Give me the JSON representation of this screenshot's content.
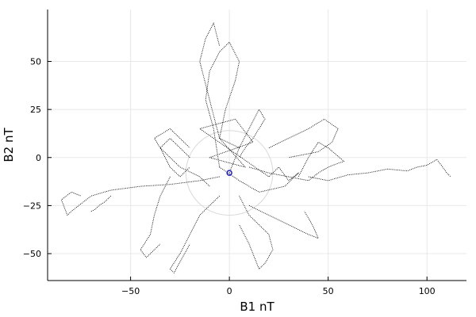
{
  "chart_data": {
    "type": "line",
    "xlabel": "B1 nT",
    "ylabel": "B2 nT",
    "xlim": [
      -92,
      120
    ],
    "ylim": [
      -64,
      77
    ],
    "xticks": [
      -50,
      0,
      50,
      100
    ],
    "yticks": [
      -50,
      -25,
      0,
      25,
      50
    ],
    "xtick_labels": [
      "−50",
      "0",
      "50",
      "100"
    ],
    "ytick_labels": [
      "−50",
      "−25",
      "0",
      "25",
      "50"
    ],
    "grid": true,
    "legend": "none",
    "colors": {
      "trace": "#000000",
      "marker": "#1f1fbf",
      "circle": "#d8d8d8",
      "grid": "#e8e8e8"
    },
    "circle": {
      "center": [
        0,
        -8
      ],
      "radius": 22
    },
    "marker": {
      "x": 0,
      "y": -8
    },
    "series": [
      {
        "x": [
          0,
          5,
          -5,
          8,
          -10,
          12,
          3,
          -15,
          20,
          25,
          30,
          35,
          28,
          15,
          5,
          -5
        ],
        "y": [
          -8,
          5,
          10,
          -5,
          0,
          8,
          20,
          15,
          -10,
          -5,
          -12,
          -8,
          -15,
          -18,
          -12,
          -5
        ]
      },
      {
        "x": [
          -5,
          -8,
          -12,
          -10,
          -5,
          0,
          5,
          3,
          -2,
          -5
        ],
        "y": [
          -5,
          15,
          30,
          45,
          55,
          60,
          50,
          40,
          25,
          10
        ]
      },
      {
        "x": [
          -5,
          -10,
          -15,
          -12,
          -8,
          -5
        ],
        "y": [
          10,
          30,
          50,
          62,
          70,
          58
        ]
      },
      {
        "x": [
          10,
          20,
          30,
          40,
          45,
          50,
          55,
          58,
          50,
          45,
          40,
          35
        ],
        "y": [
          -5,
          -8,
          -10,
          -12,
          -8,
          -5,
          -3,
          -2,
          5,
          8,
          0,
          -10
        ]
      },
      {
        "x": [
          40,
          50,
          60,
          70,
          80,
          90,
          95,
          100,
          105,
          108,
          110,
          112
        ],
        "y": [
          -10,
          -12,
          -9,
          -8,
          -6,
          -7,
          -5,
          -4,
          -1,
          -5,
          -8,
          -10
        ]
      },
      {
        "x": [
          -5,
          -15,
          -30,
          -45,
          -60,
          -70,
          -75,
          -80,
          -82,
          -85,
          -80,
          -75
        ],
        "y": [
          -10,
          -12,
          -14,
          -15,
          -17,
          -20,
          -24,
          -28,
          -30,
          -22,
          -18,
          -20
        ]
      },
      {
        "x": [
          -60,
          -63,
          -66,
          -68,
          -70
        ],
        "y": [
          -20,
          -23,
          -25,
          -27,
          -28
        ]
      },
      {
        "x": [
          -10,
          -15,
          -25,
          -35,
          -38,
          -30,
          -20
        ],
        "y": [
          -15,
          -10,
          -5,
          5,
          10,
          15,
          5
        ]
      },
      {
        "x": [
          -5,
          -10,
          -15,
          -20,
          -25,
          -30,
          -28,
          -20
        ],
        "y": [
          -20,
          -25,
          -30,
          -40,
          -50,
          -58,
          -60,
          -45
        ]
      },
      {
        "x": [
          5,
          10,
          15,
          20,
          22,
          18,
          15,
          10,
          5
        ],
        "y": [
          -20,
          -30,
          -35,
          -40,
          -48,
          -55,
          -58,
          -45,
          -35
        ]
      },
      {
        "x": [
          10,
          20,
          30,
          40,
          45,
          42,
          38
        ],
        "y": [
          -25,
          -30,
          -35,
          -40,
          -42,
          -35,
          -28
        ]
      },
      {
        "x": [
          20,
          30,
          40,
          48,
          55,
          52,
          45,
          30
        ],
        "y": [
          5,
          10,
          15,
          20,
          15,
          8,
          3,
          0
        ]
      },
      {
        "x": [
          -30,
          -35,
          -38,
          -40,
          -45,
          -42,
          -35
        ],
        "y": [
          -10,
          -20,
          -30,
          -40,
          -48,
          -52,
          -45
        ]
      },
      {
        "x": [
          5,
          10,
          15,
          18,
          12,
          8,
          5
        ],
        "y": [
          5,
          15,
          25,
          20,
          10,
          5,
          0
        ]
      },
      {
        "x": [
          -20,
          -25,
          -30,
          -35,
          -30,
          -25,
          -20
        ],
        "y": [
          0,
          5,
          10,
          5,
          -5,
          -10,
          -5
        ]
      }
    ]
  }
}
